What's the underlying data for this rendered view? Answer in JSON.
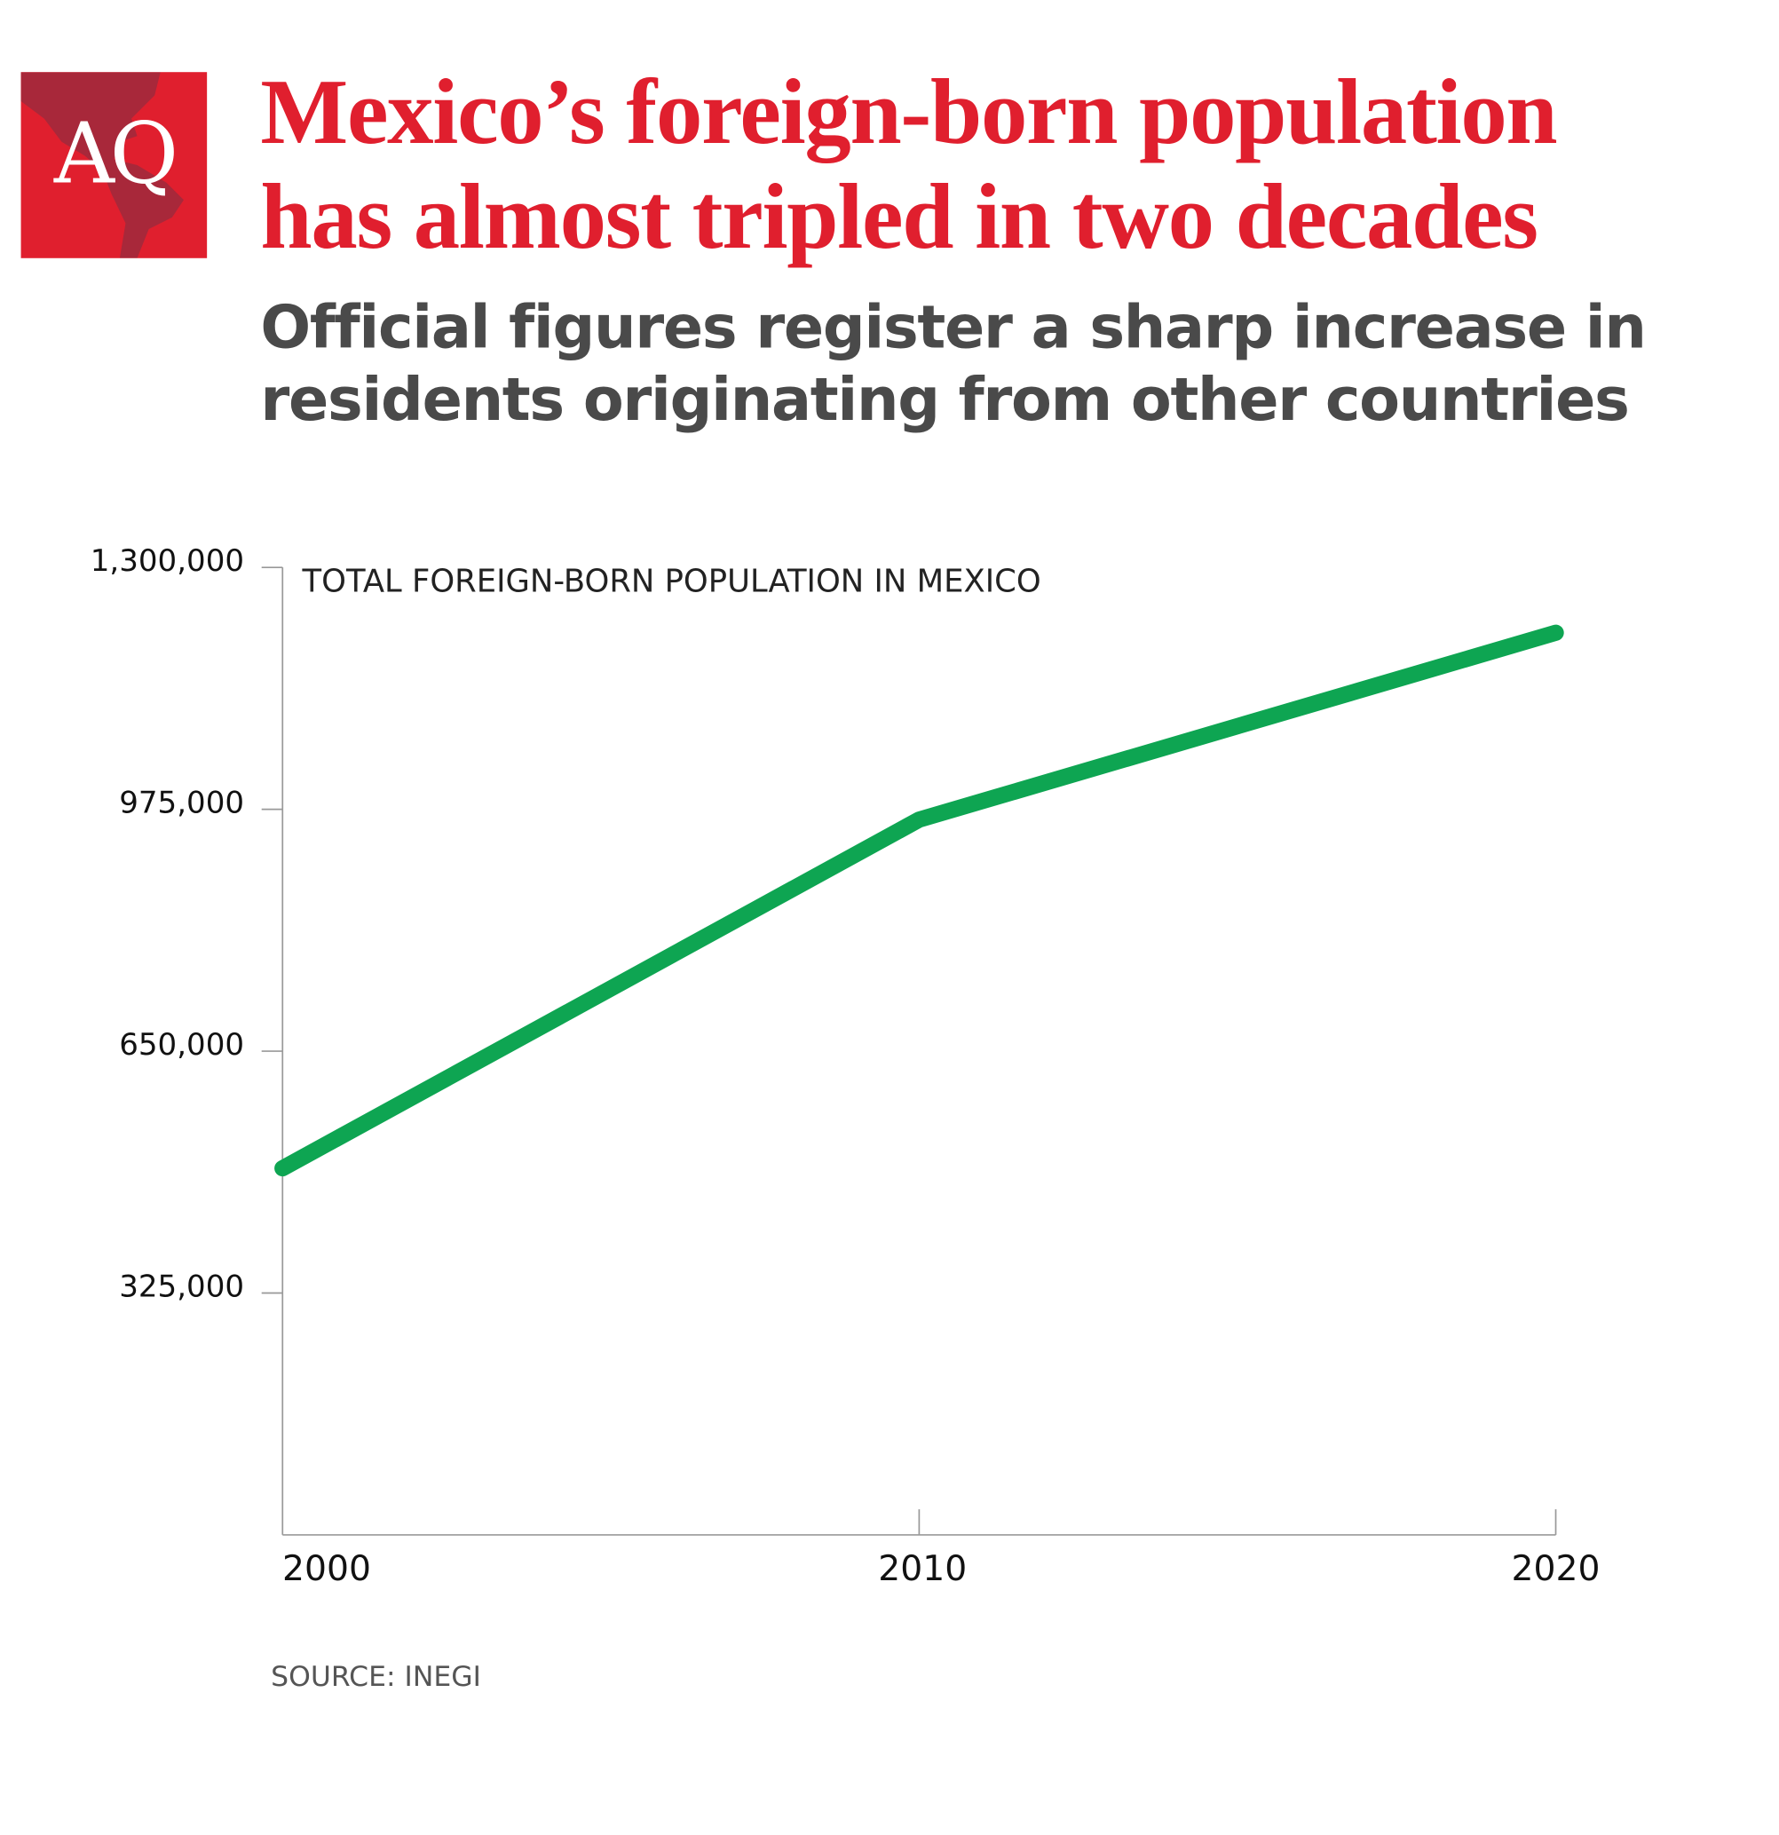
{
  "header": {
    "logo_text": "AQ",
    "title_lines": [
      "Mexico’s foreign-born population",
      "has almost tripled in two decades"
    ],
    "subtitle_lines": [
      "Official figures register a sharp increase in",
      "residents originating from other countries"
    ]
  },
  "colors": {
    "brand_red": "#e01f2e",
    "line_green": "#0ea552",
    "subtitle_gray": "#4a4a4a"
  },
  "chart_data": {
    "type": "line",
    "title": "TOTAL FOREIGN-BORN POPULATION IN MEXICO",
    "x": [
      2000,
      2010,
      2020
    ],
    "x_tick_labels": [
      "2000",
      "2010",
      "2020"
    ],
    "values": [
      492617,
      961121,
      1212252
    ],
    "ylim": [
      0,
      1300000
    ],
    "y_ticks": [
      325000,
      650000,
      975000,
      1300000
    ],
    "y_tick_labels": [
      "325,000",
      "650,000",
      "975,000",
      "1,300,000"
    ],
    "grid": false,
    "xlabel": "",
    "ylabel": ""
  },
  "footer": {
    "source": "SOURCE: INEGI"
  }
}
